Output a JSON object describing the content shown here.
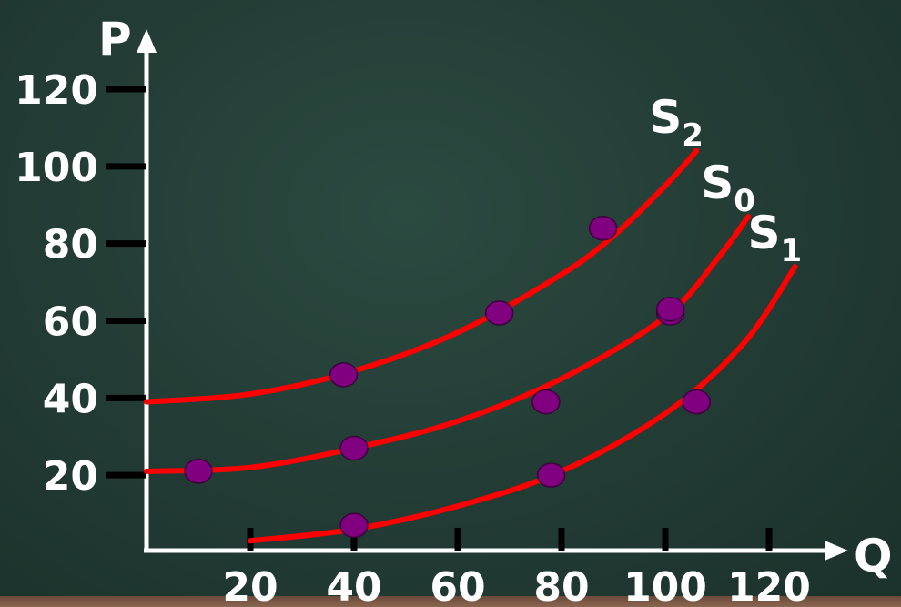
{
  "chart_data": {
    "type": "line",
    "xlabel": "Q",
    "ylabel": "P",
    "xlim": [
      0,
      130
    ],
    "ylim": [
      0,
      120
    ],
    "x_ticks": [
      20,
      40,
      60,
      80,
      100,
      120
    ],
    "y_ticks": [
      20,
      40,
      60,
      80,
      100,
      120
    ],
    "grid": false,
    "line_color": "#ff0000",
    "point_color": "#800080",
    "series": [
      {
        "name": "S",
        "subscript": "2",
        "x": [
          0,
          20,
          40,
          60,
          80,
          90,
          100,
          106
        ],
        "y": [
          39,
          41,
          47,
          57,
          72,
          82,
          95,
          104
        ],
        "points": [
          [
            38,
            46
          ],
          [
            68,
            62
          ],
          [
            88,
            84
          ]
        ]
      },
      {
        "name": "S",
        "subscript": "0",
        "x": [
          0,
          20,
          40,
          60,
          80,
          100,
          110,
          116
        ],
        "y": [
          21,
          22,
          27,
          34,
          45,
          61,
          76,
          87
        ],
        "points": [
          [
            10,
            21
          ],
          [
            40,
            27
          ],
          [
            77,
            39
          ],
          [
            101,
            62
          ],
          [
            101,
            63
          ]
        ]
      },
      {
        "name": "S",
        "subscript": "1",
        "x": [
          20,
          40,
          60,
          80,
          100,
          115,
          125
        ],
        "y": [
          3,
          6,
          12,
          21,
          36,
          54,
          74
        ],
        "points": [
          [
            40,
            7
          ],
          [
            78,
            20
          ],
          [
            106,
            39
          ]
        ]
      }
    ]
  }
}
